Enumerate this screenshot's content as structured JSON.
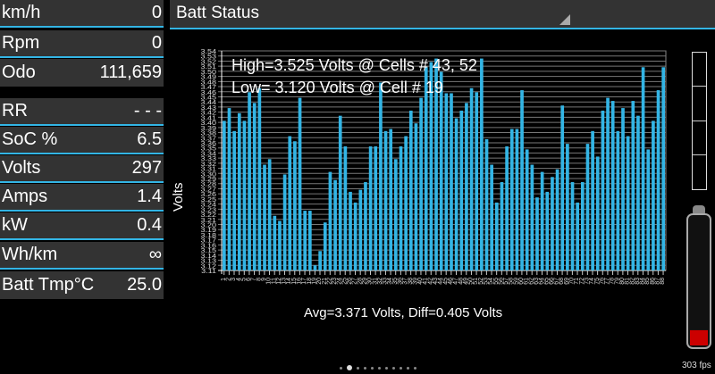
{
  "metrics": [
    {
      "label": "km/h",
      "value": "0"
    },
    {
      "label": "Rpm",
      "value": "0"
    },
    {
      "label": "Odo",
      "value": "111,659"
    },
    {
      "label": "RR",
      "value": "- - -"
    },
    {
      "label": "SoC %",
      "value": "6.5"
    },
    {
      "label": "Volts",
      "value": "297"
    },
    {
      "label": "Amps",
      "value": "1.4"
    },
    {
      "label": "kW",
      "value": "0.4"
    },
    {
      "label": "Wh/km",
      "value": "∞"
    },
    {
      "label": "Batt Tmp°C",
      "value": "25.0"
    }
  ],
  "header": {
    "title": "Batt Status"
  },
  "annotations": {
    "high": "High=3.525 Volts @ Cells # 43, 52",
    "low": "Low= 3.120 Volts @ Cell # 19",
    "footer": "Avg=3.371 Volts, Diff=0.405 Volts"
  },
  "fps": "303 fps",
  "battery_level_percent": 6.5,
  "colors": {
    "accent": "#33b5e5",
    "bar": "#33b5e5",
    "panel": "#333333"
  },
  "chart_data": {
    "type": "bar",
    "ylabel": "Volts",
    "ylim": [
      3.11,
      3.54
    ],
    "ytick_step": 0.01,
    "grid": true,
    "categories_range": [
      1,
      88
    ],
    "values": [
      3.403,
      3.428,
      3.383,
      3.418,
      3.403,
      3.459,
      3.438,
      3.467,
      3.317,
      3.328,
      3.217,
      3.207,
      3.298,
      3.373,
      3.363,
      3.448,
      3.227,
      3.227,
      3.12,
      3.148,
      3.204,
      3.303,
      3.287,
      3.413,
      3.353,
      3.264,
      3.243,
      3.268,
      3.283,
      3.353,
      3.353,
      3.478,
      3.383,
      3.387,
      3.328,
      3.353,
      3.373,
      3.423,
      3.398,
      3.448,
      3.508,
      3.518,
      3.525,
      3.499,
      3.457,
      3.457,
      3.408,
      3.423,
      3.438,
      3.467,
      3.459,
      3.525,
      3.367,
      3.317,
      3.243,
      3.283,
      3.353,
      3.387,
      3.387,
      3.463,
      3.347,
      3.317,
      3.253,
      3.303,
      3.264,
      3.293,
      3.308,
      3.433,
      3.358,
      3.283,
      3.243,
      3.283,
      3.358,
      3.383,
      3.333,
      3.423,
      3.448,
      3.442,
      3.383,
      3.428,
      3.373,
      3.442,
      3.413,
      3.508,
      3.347,
      3.403,
      3.463,
      3.508
    ]
  }
}
